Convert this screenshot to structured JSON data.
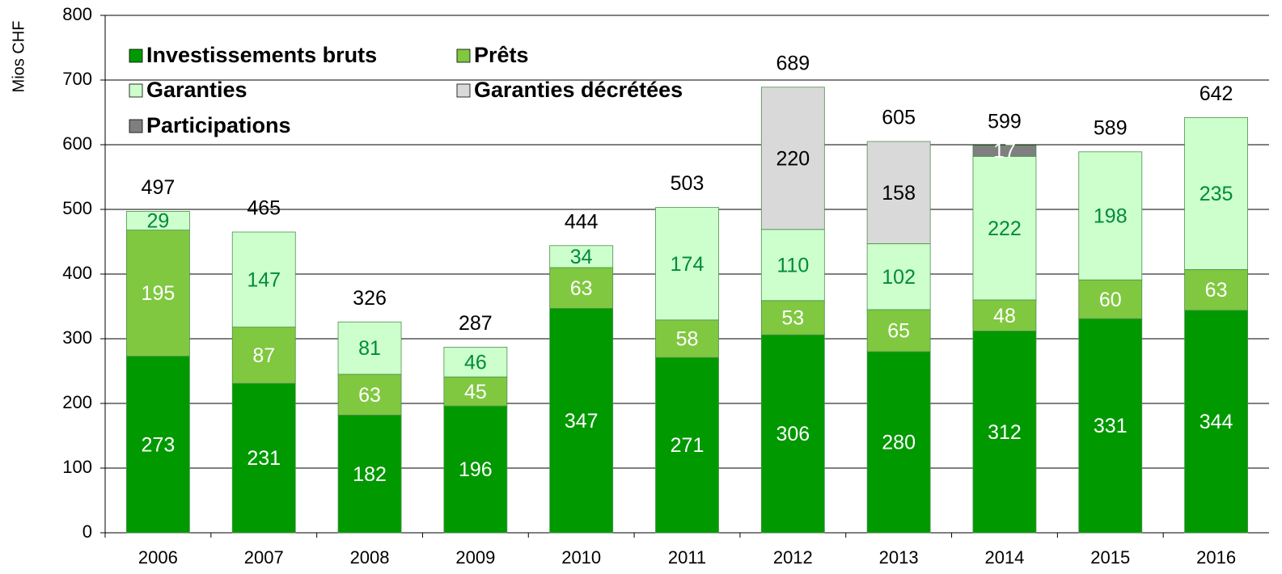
{
  "chart_data": {
    "type": "stacked_bar",
    "y_label": "Mios CHF",
    "categories": [
      "2006",
      "2007",
      "2008",
      "2009",
      "2010",
      "2011",
      "2012",
      "2013",
      "2014",
      "2015",
      "2016"
    ],
    "series": [
      {
        "name": "Investissements bruts",
        "color": "#009900",
        "label_color": "#ffffff",
        "values": [
          273,
          231,
          182,
          196,
          347,
          271,
          306,
          280,
          312,
          331,
          344
        ]
      },
      {
        "name": "Prêts",
        "color": "#80c840",
        "label_color": "#ffffff",
        "values": [
          195,
          87,
          63,
          45,
          63,
          58,
          53,
          65,
          48,
          60,
          63
        ]
      },
      {
        "name": "Garanties",
        "color": "#ccffcc",
        "label_color": "#008a3e",
        "values": [
          29,
          147,
          81,
          46,
          34,
          174,
          110,
          102,
          222,
          198,
          235
        ]
      },
      {
        "name": "Garanties décrétées",
        "color": "#d9d9d9",
        "label_color": "#000000",
        "values": [
          null,
          null,
          null,
          null,
          null,
          null,
          220,
          158,
          null,
          null,
          null
        ]
      },
      {
        "name": "Participations",
        "color": "#7f7f7f",
        "label_color": "#ffffff",
        "values": [
          null,
          null,
          null,
          null,
          null,
          null,
          null,
          null,
          17,
          null,
          null
        ]
      }
    ],
    "totals": [
      497,
      465,
      326,
      287,
      444,
      503,
      689,
      605,
      599,
      589,
      642
    ],
    "ylim": [
      0,
      800
    ],
    "yticks": [
      0,
      100,
      200,
      300,
      400,
      500,
      600,
      700,
      800
    ],
    "grid": true
  }
}
